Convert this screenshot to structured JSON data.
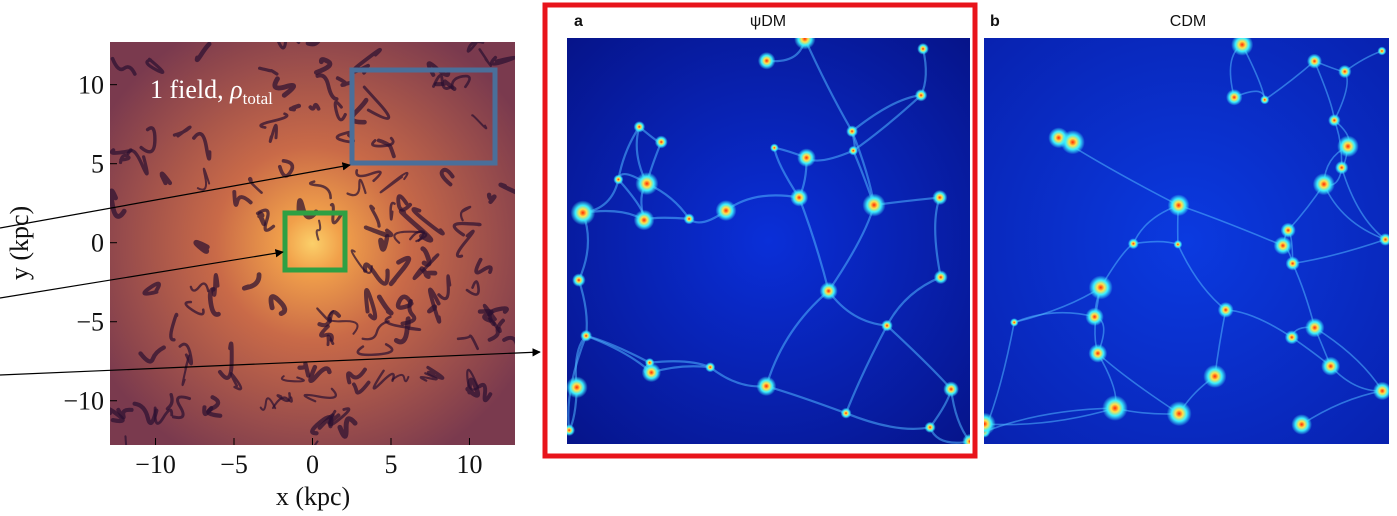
{
  "left_panel": {
    "annotation": {
      "text": "1 field, ",
      "symbol": "ρ",
      "subscript": "total"
    },
    "x_label": "x  (kpc)",
    "y_label": "y  (kpc)",
    "xlim": [
      -12.9,
      12.9
    ],
    "ylim": [
      -12.8,
      12.7
    ],
    "xticks": [
      {
        "value": -10,
        "label": "−10"
      },
      {
        "value": -5,
        "label": "−5"
      },
      0,
      5,
      10
    ],
    "yticks": [
      {
        "value": -10,
        "label": "−10"
      },
      {
        "value": -5,
        "label": "−5"
      },
      0,
      5,
      10
    ]
  },
  "panel_a": {
    "letter": "a",
    "title": "ψDM"
  },
  "panel_b": {
    "letter": "b",
    "title": "CDM"
  }
}
